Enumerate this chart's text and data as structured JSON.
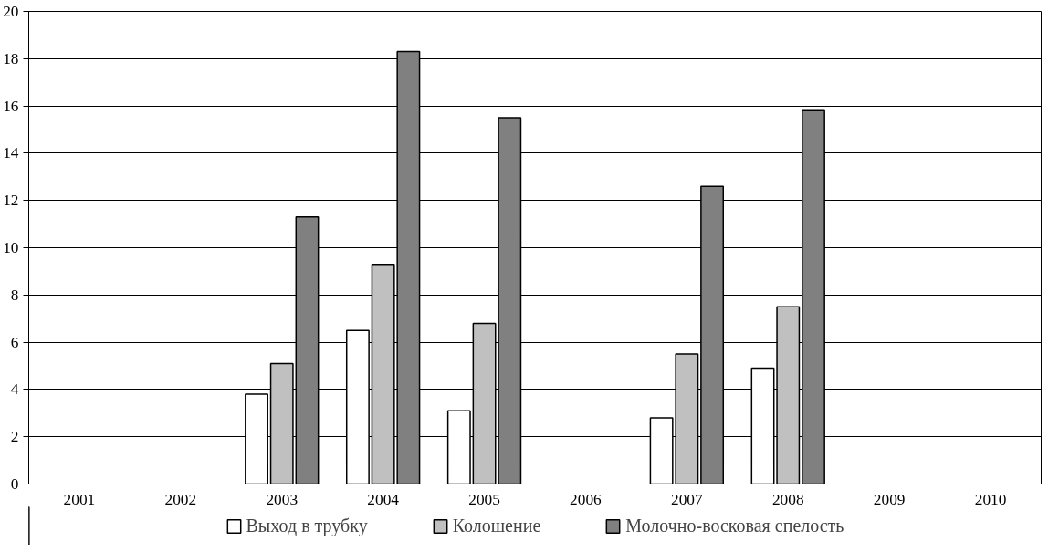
{
  "chart_data": {
    "type": "bar",
    "categories": [
      "2001",
      "2002",
      "2003",
      "2004",
      "2005",
      "2006",
      "2007",
      "2008",
      "2009",
      "2010"
    ],
    "series": [
      {
        "name": "Выход в трубку",
        "color": "#ffffff",
        "values": [
          null,
          null,
          3.8,
          6.5,
          3.1,
          null,
          2.8,
          4.9,
          null,
          null
        ]
      },
      {
        "name": "Колошение",
        "color": "#c0c0c0",
        "values": [
          null,
          null,
          5.1,
          9.3,
          6.8,
          null,
          5.5,
          7.5,
          null,
          null
        ]
      },
      {
        "name": "Молочно-восковая спелость",
        "color": "#808080",
        "values": [
          null,
          null,
          11.3,
          18.3,
          15.5,
          null,
          12.6,
          15.8,
          null,
          null
        ]
      }
    ],
    "ylim": [
      0,
      20
    ],
    "yticks": [
      0,
      2,
      4,
      6,
      8,
      10,
      12,
      14,
      16,
      18,
      20
    ],
    "grid": "y",
    "legend": "bottom"
  }
}
